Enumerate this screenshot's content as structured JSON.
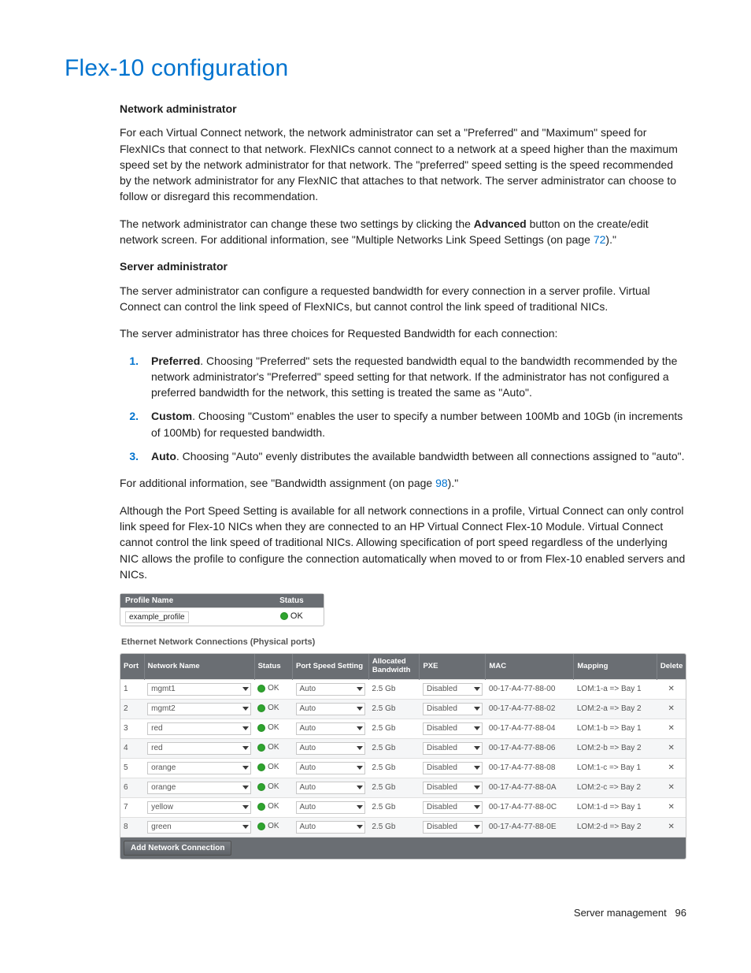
{
  "title": "Flex-10 configuration",
  "section1": {
    "heading": "Network administrator",
    "para1": "For each Virtual Connect network, the network administrator can set a \"Preferred\" and \"Maximum\" speed for FlexNICs that connect to that network. FlexNICs cannot connect to a network at a speed higher than the maximum speed set by the network administrator for that network. The \"preferred\" speed setting is the speed recommended by the network administrator for any FlexNIC that attaches to that network. The server administrator can choose to follow or disregard this recommendation.",
    "para2_pre": "The network administrator can change these two settings by clicking the ",
    "para2_bold": "Advanced",
    "para2_post": " button on the create/edit network screen. For additional information, see \"Multiple Networks Link Speed Settings (on page ",
    "para2_link": "72",
    "para2_end": ").\""
  },
  "section2": {
    "heading": "Server administrator",
    "para1": "The server administrator can configure a requested bandwidth for every connection in a server profile. Virtual Connect can control the link speed of FlexNICs, but cannot control the link speed of traditional NICs.",
    "para2": "The server administrator has three choices for Requested Bandwidth for each connection:",
    "items": [
      {
        "n": "1.",
        "bold": "Preferred",
        "text": ". Choosing \"Preferred\" sets the requested bandwidth equal to the bandwidth recommended by the network administrator's \"Preferred\" speed setting for that network. If the administrator has not configured a preferred bandwidth for the network, this setting is treated the same as \"Auto\"."
      },
      {
        "n": "2.",
        "bold": "Custom",
        "text": ". Choosing \"Custom\" enables the user to specify a number between 100Mb and 10Gb (in increments of 100Mb) for requested bandwidth."
      },
      {
        "n": "3.",
        "bold": "Auto",
        "text": ". Choosing \"Auto\" evenly distributes the available bandwidth between all connections assigned to \"auto\"."
      }
    ],
    "para3_pre": "For additional information, see \"Bandwidth assignment (on page ",
    "para3_link": "98",
    "para3_end": ").\"",
    "para4": "Although the Port Speed Setting is available for all network connections in a profile, Virtual Connect can only control link speed for Flex-10 NICs when they are connected to an HP Virtual Connect Flex-10 Module. Virtual Connect cannot control the link speed of traditional NICs. Allowing specification of port speed regardless of the underlying NIC allows the profile to configure the connection automatically when moved to or from Flex-10 enabled servers and NICs."
  },
  "profile": {
    "col1": "Profile Name",
    "col2": "Status",
    "name": "example_profile",
    "status": "OK"
  },
  "connections": {
    "title": "Ethernet Network Connections (Physical ports)",
    "add_label": "Add Network Connection",
    "columns": {
      "port": "Port",
      "net": "Network Name",
      "status": "Status",
      "pss": "Port Speed Setting",
      "bw": "Allocated Bandwidth",
      "pxe": "PXE",
      "mac": "MAC",
      "map": "Mapping",
      "del": "Delete"
    },
    "rows": [
      {
        "port": "1",
        "net": "mgmt1",
        "status": "OK",
        "pss": "Auto",
        "bw": "2.5 Gb",
        "pxe": "Disabled",
        "mac": "00-17-A4-77-88-00",
        "map": "LOM:1-a => Bay 1"
      },
      {
        "port": "2",
        "net": "mgmt2",
        "status": "OK",
        "pss": "Auto",
        "bw": "2.5 Gb",
        "pxe": "Disabled",
        "mac": "00-17-A4-77-88-02",
        "map": "LOM:2-a => Bay 2"
      },
      {
        "port": "3",
        "net": "red",
        "status": "OK",
        "pss": "Auto",
        "bw": "2.5 Gb",
        "pxe": "Disabled",
        "mac": "00-17-A4-77-88-04",
        "map": "LOM:1-b => Bay 1"
      },
      {
        "port": "4",
        "net": "red",
        "status": "OK",
        "pss": "Auto",
        "bw": "2.5 Gb",
        "pxe": "Disabled",
        "mac": "00-17-A4-77-88-06",
        "map": "LOM:2-b => Bay 2"
      },
      {
        "port": "5",
        "net": "orange",
        "status": "OK",
        "pss": "Auto",
        "bw": "2.5 Gb",
        "pxe": "Disabled",
        "mac": "00-17-A4-77-88-08",
        "map": "LOM:1-c => Bay 1"
      },
      {
        "port": "6",
        "net": "orange",
        "status": "OK",
        "pss": "Auto",
        "bw": "2.5 Gb",
        "pxe": "Disabled",
        "mac": "00-17-A4-77-88-0A",
        "map": "LOM:2-c => Bay 2"
      },
      {
        "port": "7",
        "net": "yellow",
        "status": "OK",
        "pss": "Auto",
        "bw": "2.5 Gb",
        "pxe": "Disabled",
        "mac": "00-17-A4-77-88-0C",
        "map": "LOM:1-d => Bay 1"
      },
      {
        "port": "8",
        "net": "green",
        "status": "OK",
        "pss": "Auto",
        "bw": "2.5 Gb",
        "pxe": "Disabled",
        "mac": "00-17-A4-77-88-0E",
        "map": "LOM:2-d => Bay 2"
      }
    ]
  },
  "footer": {
    "section": "Server management",
    "page": "96"
  }
}
